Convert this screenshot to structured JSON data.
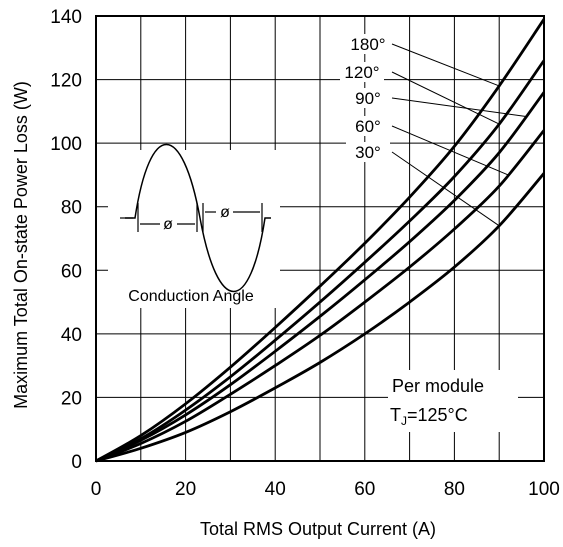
{
  "chart_data": {
    "type": "line",
    "title": "",
    "xlabel": "Total RMS Output Current (A)",
    "ylabel": "Maximum Total On-state Power Loss (W)",
    "xlim": [
      0,
      100
    ],
    "ylim": [
      0,
      140
    ],
    "xticks": [
      "0",
      "20",
      "40",
      "60",
      "80",
      "100"
    ],
    "yticks": [
      "0",
      "20",
      "40",
      "60",
      "80",
      "100",
      "120",
      "140"
    ],
    "grid": true,
    "x": [
      0,
      10,
      20,
      30,
      40,
      50,
      60,
      70,
      80,
      90,
      100
    ],
    "series": [
      {
        "name": "180°",
        "values": [
          0,
          8,
          18,
          29.5,
          42,
          55,
          68.5,
          83,
          99,
          118,
          139
        ]
      },
      {
        "name": "120°",
        "values": [
          0,
          7,
          16,
          26.5,
          38,
          50,
          62.5,
          75.5,
          89.5,
          106,
          126
        ]
      },
      {
        "name": "90°",
        "values": [
          0,
          6.5,
          14.5,
          24,
          34.5,
          45.5,
          57,
          69,
          82,
          97,
          116
        ]
      },
      {
        "name": "60°",
        "values": [
          0,
          5.5,
          12.5,
          21,
          30,
          39.5,
          50,
          61,
          73,
          86.5,
          104
        ]
      },
      {
        "name": "30°",
        "values": [
          0,
          4,
          9,
          15.5,
          23,
          31,
          40,
          50,
          61,
          74,
          90.5
        ]
      }
    ],
    "annotations": {
      "inset_label": "Conduction Angle",
      "phi_symbol": "ø",
      "note_line1": "Per module",
      "note_tj_prefix": "T",
      "note_tj_sub": "J",
      "note_tj_suffix": "=125°C"
    }
  }
}
